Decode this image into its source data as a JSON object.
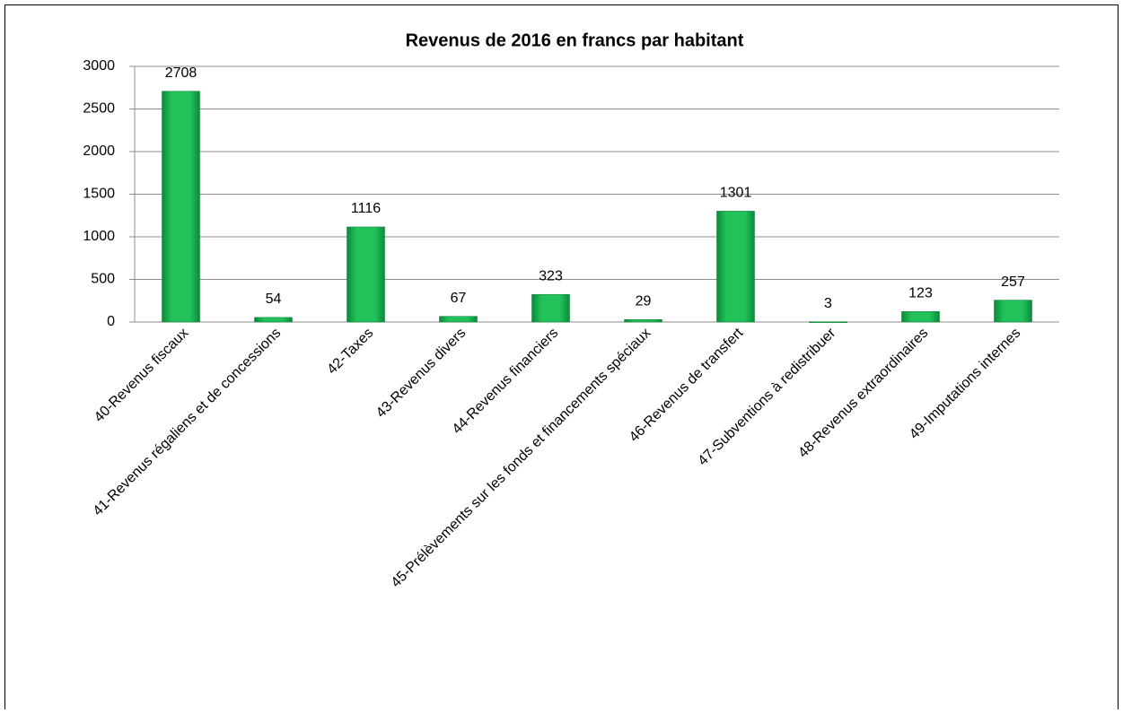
{
  "chart_data": {
    "type": "bar",
    "title": "Revenus de 2016 en francs par habitant",
    "categories": [
      "40-Revenus fiscaux",
      "41-Revenus régaliens et de concessions",
      "42-Taxes",
      "43-Revenus divers",
      "44-Revenus financiers",
      "45-Prélèvements sur les fonds et financements spéciaux",
      "46-Revenus de transfert",
      "47-Subventions à redistribuer",
      "48-Revenus extraordinaires",
      "49-Imputations internes"
    ],
    "values": [
      2708,
      54,
      1116,
      67,
      323,
      29,
      1301,
      3,
      123,
      257
    ],
    "color": "#1fb552",
    "ylim": [
      0,
      3000
    ],
    "yticks": [
      0,
      500,
      1000,
      1500,
      2000,
      2500,
      3000
    ],
    "grid": true
  }
}
